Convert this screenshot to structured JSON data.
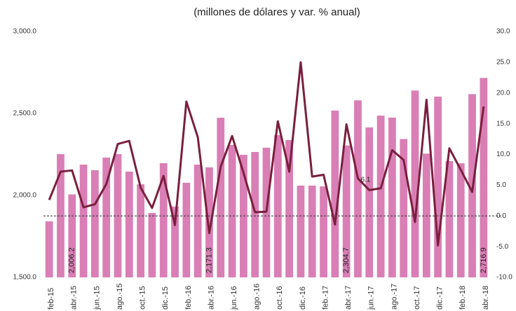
{
  "chart_data": {
    "type": "bar_line",
    "title": "(millones de dólares y var. % anual)",
    "categories": [
      "feb-15",
      null,
      "abr.-15",
      null,
      "jun.-15",
      null,
      "ago.-15",
      null,
      "oct.-15",
      null,
      "dic.-15",
      null,
      "feb.-16",
      null,
      "abr.-16",
      null,
      "jun.-16",
      null,
      "ago.-16",
      null,
      "oct.-16",
      null,
      "dic.-16",
      null,
      "feb.-17",
      null,
      "abr.-17",
      null,
      "jun.-17",
      null,
      "ago.-17",
      null,
      "oct.-17",
      null,
      "dic.-17",
      null,
      "feb.-18",
      null,
      "abr.-18"
    ],
    "series": [
      {
        "color": "#d97fb5",
        "values": [
          1842,
          2252,
          2006.2,
          2188,
          2154,
          2231,
          2252,
          2145,
          2068,
          1893,
          2197,
          1932,
          2077,
          2188,
          2171.3,
          2474,
          2308,
          2248,
          2265,
          2291,
          2368,
          2338,
          2060,
          2060,
          2055,
          2518,
          2304.7,
          2580,
          2415,
          2487,
          2475,
          2344,
          2640,
          2255,
          2603,
          2210,
          2196,
          2618,
          2716.9
        ],
        "value_labels": [
          null,
          null,
          "2,006.2",
          null,
          null,
          null,
          null,
          null,
          null,
          null,
          null,
          null,
          null,
          null,
          "2,171.3",
          null,
          null,
          null,
          null,
          null,
          null,
          null,
          null,
          null,
          null,
          null,
          "2,304.7",
          null,
          null,
          null,
          null,
          null,
          null,
          null,
          null,
          null,
          null,
          null,
          "2,716.9"
        ]
      },
      {
        "color": "#7a1f3d",
        "axis": "y2",
        "values": [
          2.6,
          7.2,
          7.4,
          1.4,
          1.9,
          5.2,
          11.7,
          12.2,
          4.6,
          1.3,
          6.5,
          -1.5,
          18.6,
          12.8,
          -2.8,
          8.0,
          13.0,
          7.0,
          0.6,
          0.7,
          15.4,
          7.2,
          25.0,
          6.4,
          6.7,
          -1.4,
          14.9,
          6.1,
          4.2,
          4.5,
          10.7,
          9.1,
          -1.0,
          18.9,
          -4.8,
          11.0,
          7.5,
          3.9,
          17.8
        ],
        "value_labels": [
          null,
          null,
          null,
          null,
          null,
          null,
          null,
          null,
          null,
          null,
          null,
          null,
          null,
          null,
          null,
          null,
          null,
          null,
          null,
          null,
          null,
          null,
          null,
          null,
          null,
          null,
          null,
          "6.1",
          null,
          null,
          null,
          null,
          null,
          null,
          null,
          null,
          null,
          null,
          null
        ]
      }
    ],
    "ylim": [
      1500,
      3000
    ],
    "yticks": [
      {
        "value": 1500,
        "label": "1,500.0"
      },
      {
        "value": 2000,
        "label": "2,000.0"
      },
      {
        "value": 2500,
        "label": "2,500.0"
      },
      {
        "value": 3000,
        "label": "3,000.0"
      }
    ],
    "y2lim": [
      -10,
      30
    ],
    "y2ticks": [
      {
        "value": -10,
        "label": "-10.0"
      },
      {
        "value": -5,
        "label": "-5.0"
      },
      {
        "value": 0,
        "label": "0.0"
      },
      {
        "value": 5,
        "label": "5.0"
      },
      {
        "value": 10,
        "label": "10.0"
      },
      {
        "value": 15,
        "label": "15.0"
      },
      {
        "value": 20,
        "label": "20.0"
      },
      {
        "value": 25,
        "label": "25.0"
      },
      {
        "value": 30,
        "label": "30.0"
      }
    ]
  }
}
